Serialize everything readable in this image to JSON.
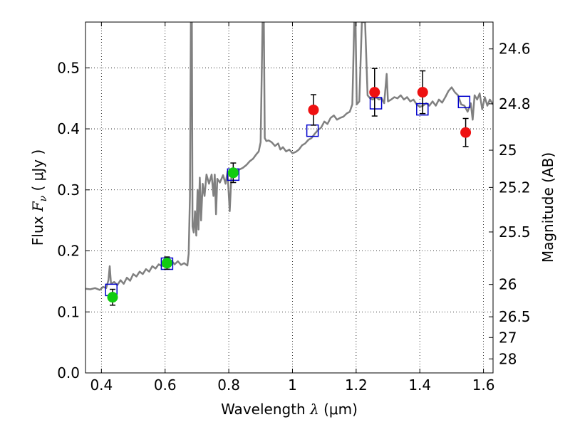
{
  "chart_data": {
    "type": "scatter",
    "xlabel": {
      "prefix": "Wavelength  ",
      "symbol": "λ",
      "suffix": " (μm)"
    },
    "ylabel": {
      "prefix": "Flux  ",
      "symbol": "F",
      "sub": "ν",
      "suffix": "  ( μJy )"
    },
    "ylabel_right": "Magnitude (AB)",
    "xlim": [
      0.35,
      1.63
    ],
    "ylim": [
      0.0,
      0.575
    ],
    "grid": true,
    "x_ticks": [
      0.4,
      0.6,
      0.8,
      1.0,
      1.2,
      1.4,
      1.6
    ],
    "x_tick_labels": [
      "0.4",
      "0.6",
      "0.8",
      "1",
      "1.2",
      "1.4",
      "1.6"
    ],
    "y_ticks": [
      0.0,
      0.1,
      0.2,
      0.3,
      0.4,
      0.5
    ],
    "y_tick_labels": [
      "0.0",
      "0.1",
      "0.2",
      "0.3",
      "0.4",
      "0.5"
    ],
    "mag_ticks": [
      {
        "label": "24.6",
        "flux": 0.531
      },
      {
        "label": "24.8",
        "flux": 0.441
      },
      {
        "label": "25",
        "flux": 0.365
      },
      {
        "label": "25.2",
        "flux": 0.304
      },
      {
        "label": "25.5",
        "flux": 0.231
      },
      {
        "label": "26",
        "flux": 0.145
      },
      {
        "label": "26.5",
        "flux": 0.092
      },
      {
        "label": "27",
        "flux": 0.058
      },
      {
        "label": "28",
        "flux": 0.023
      }
    ],
    "colors": {
      "spectrum": "#808080",
      "model": "#0000cc",
      "observed_red": "#ee1111",
      "observed_green": "#11cc11",
      "errorbar": "#000000"
    },
    "series": [
      {
        "kind": "observed_green",
        "points": [
          {
            "x": 0.435,
            "y": 0.124,
            "err": 0.013
          },
          {
            "x": 0.606,
            "y": 0.18,
            "err": 0.01
          },
          {
            "x": 0.814,
            "y": 0.328,
            "err": 0.016
          }
        ]
      },
      {
        "kind": "observed_red",
        "points": [
          {
            "x": 1.066,
            "y": 0.431,
            "err": 0.025
          },
          {
            "x": 1.258,
            "y": 0.46,
            "err": 0.039
          },
          {
            "x": 1.409,
            "y": 0.46,
            "err": 0.035
          },
          {
            "x": 1.544,
            "y": 0.394,
            "err": 0.023
          }
        ]
      },
      {
        "kind": "model",
        "points": [
          {
            "x": 0.431,
            "y": 0.136
          },
          {
            "x": 0.606,
            "y": 0.179
          },
          {
            "x": 0.814,
            "y": 0.325
          },
          {
            "x": 1.063,
            "y": 0.397
          },
          {
            "x": 1.262,
            "y": 0.442
          },
          {
            "x": 1.408,
            "y": 0.432
          },
          {
            "x": 1.539,
            "y": 0.444
          }
        ]
      },
      {
        "kind": "spectrum",
        "points": [
          [
            0.35,
            0.138
          ],
          [
            0.365,
            0.137
          ],
          [
            0.38,
            0.139
          ],
          [
            0.395,
            0.136
          ],
          [
            0.405,
            0.141
          ],
          [
            0.415,
            0.139
          ],
          [
            0.422,
            0.152
          ],
          [
            0.426,
            0.175
          ],
          [
            0.43,
            0.146
          ],
          [
            0.44,
            0.149
          ],
          [
            0.45,
            0.144
          ],
          [
            0.46,
            0.152
          ],
          [
            0.47,
            0.146
          ],
          [
            0.48,
            0.156
          ],
          [
            0.49,
            0.151
          ],
          [
            0.5,
            0.162
          ],
          [
            0.51,
            0.158
          ],
          [
            0.52,
            0.166
          ],
          [
            0.53,
            0.162
          ],
          [
            0.54,
            0.17
          ],
          [
            0.55,
            0.166
          ],
          [
            0.56,
            0.175
          ],
          [
            0.57,
            0.171
          ],
          [
            0.58,
            0.178
          ],
          [
            0.59,
            0.175
          ],
          [
            0.6,
            0.183
          ],
          [
            0.61,
            0.178
          ],
          [
            0.62,
            0.184
          ],
          [
            0.63,
            0.178
          ],
          [
            0.64,
            0.183
          ],
          [
            0.65,
            0.177
          ],
          [
            0.66,
            0.18
          ],
          [
            0.67,
            0.176
          ],
          [
            0.674,
            0.195
          ],
          [
            0.678,
            0.29
          ],
          [
            0.681,
            0.575
          ],
          [
            0.684,
            0.575
          ],
          [
            0.686,
            0.24
          ],
          [
            0.69,
            0.23
          ],
          [
            0.694,
            0.265
          ],
          [
            0.698,
            0.225
          ],
          [
            0.702,
            0.3
          ],
          [
            0.705,
            0.235
          ],
          [
            0.709,
            0.32
          ],
          [
            0.713,
            0.25
          ],
          [
            0.718,
            0.31
          ],
          [
            0.724,
            0.29
          ],
          [
            0.73,
            0.325
          ],
          [
            0.738,
            0.31
          ],
          [
            0.746,
            0.325
          ],
          [
            0.752,
            0.29
          ],
          [
            0.756,
            0.325
          ],
          [
            0.76,
            0.26
          ],
          [
            0.764,
            0.318
          ],
          [
            0.772,
            0.312
          ],
          [
            0.782,
            0.324
          ],
          [
            0.79,
            0.31
          ],
          [
            0.796,
            0.33
          ],
          [
            0.803,
            0.265
          ],
          [
            0.808,
            0.32
          ],
          [
            0.82,
            0.327
          ],
          [
            0.832,
            0.333
          ],
          [
            0.844,
            0.336
          ],
          [
            0.856,
            0.341
          ],
          [
            0.866,
            0.347
          ],
          [
            0.876,
            0.351
          ],
          [
            0.886,
            0.358
          ],
          [
            0.894,
            0.363
          ],
          [
            0.9,
            0.378
          ],
          [
            0.906,
            0.575
          ],
          [
            0.91,
            0.575
          ],
          [
            0.913,
            0.385
          ],
          [
            0.918,
            0.38
          ],
          [
            0.925,
            0.381
          ],
          [
            0.935,
            0.378
          ],
          [
            0.945,
            0.372
          ],
          [
            0.955,
            0.376
          ],
          [
            0.962,
            0.366
          ],
          [
            0.97,
            0.37
          ],
          [
            0.98,
            0.363
          ],
          [
            0.99,
            0.366
          ],
          [
            1.0,
            0.36
          ],
          [
            1.01,
            0.362
          ],
          [
            1.02,
            0.366
          ],
          [
            1.03,
            0.373
          ],
          [
            1.04,
            0.376
          ],
          [
            1.05,
            0.382
          ],
          [
            1.06,
            0.385
          ],
          [
            1.07,
            0.392
          ],
          [
            1.08,
            0.398
          ],
          [
            1.09,
            0.402
          ],
          [
            1.1,
            0.412
          ],
          [
            1.11,
            0.408
          ],
          [
            1.12,
            0.418
          ],
          [
            1.13,
            0.422
          ],
          [
            1.14,
            0.415
          ],
          [
            1.15,
            0.418
          ],
          [
            1.16,
            0.42
          ],
          [
            1.17,
            0.425
          ],
          [
            1.18,
            0.428
          ],
          [
            1.188,
            0.44
          ],
          [
            1.194,
            0.575
          ],
          [
            1.198,
            0.575
          ],
          [
            1.202,
            0.44
          ],
          [
            1.21,
            0.445
          ],
          [
            1.218,
            0.575
          ],
          [
            1.228,
            0.575
          ],
          [
            1.236,
            0.455
          ],
          [
            1.244,
            0.45
          ],
          [
            1.252,
            0.448
          ],
          [
            1.262,
            0.452
          ],
          [
            1.272,
            0.448
          ],
          [
            1.28,
            0.45
          ],
          [
            1.288,
            0.442
          ],
          [
            1.296,
            0.49
          ],
          [
            1.3,
            0.445
          ],
          [
            1.31,
            0.448
          ],
          [
            1.32,
            0.452
          ],
          [
            1.33,
            0.45
          ],
          [
            1.34,
            0.455
          ],
          [
            1.35,
            0.448
          ],
          [
            1.36,
            0.452
          ],
          [
            1.37,
            0.445
          ],
          [
            1.38,
            0.448
          ],
          [
            1.39,
            0.44
          ],
          [
            1.4,
            0.436
          ],
          [
            1.41,
            0.438
          ],
          [
            1.42,
            0.442
          ],
          [
            1.43,
            0.438
          ],
          [
            1.44,
            0.445
          ],
          [
            1.45,
            0.438
          ],
          [
            1.46,
            0.448
          ],
          [
            1.47,
            0.443
          ],
          [
            1.48,
            0.452
          ],
          [
            1.49,
            0.462
          ],
          [
            1.5,
            0.468
          ],
          [
            1.51,
            0.46
          ],
          [
            1.52,
            0.455
          ],
          [
            1.53,
            0.44
          ],
          [
            1.54,
            0.438
          ],
          [
            1.55,
            0.428
          ],
          [
            1.56,
            0.442
          ],
          [
            1.566,
            0.415
          ],
          [
            1.572,
            0.455
          ],
          [
            1.58,
            0.448
          ],
          [
            1.588,
            0.458
          ],
          [
            1.596,
            0.432
          ],
          [
            1.604,
            0.452
          ],
          [
            1.612,
            0.438
          ],
          [
            1.62,
            0.448
          ],
          [
            1.63,
            0.44
          ]
        ]
      }
    ]
  }
}
